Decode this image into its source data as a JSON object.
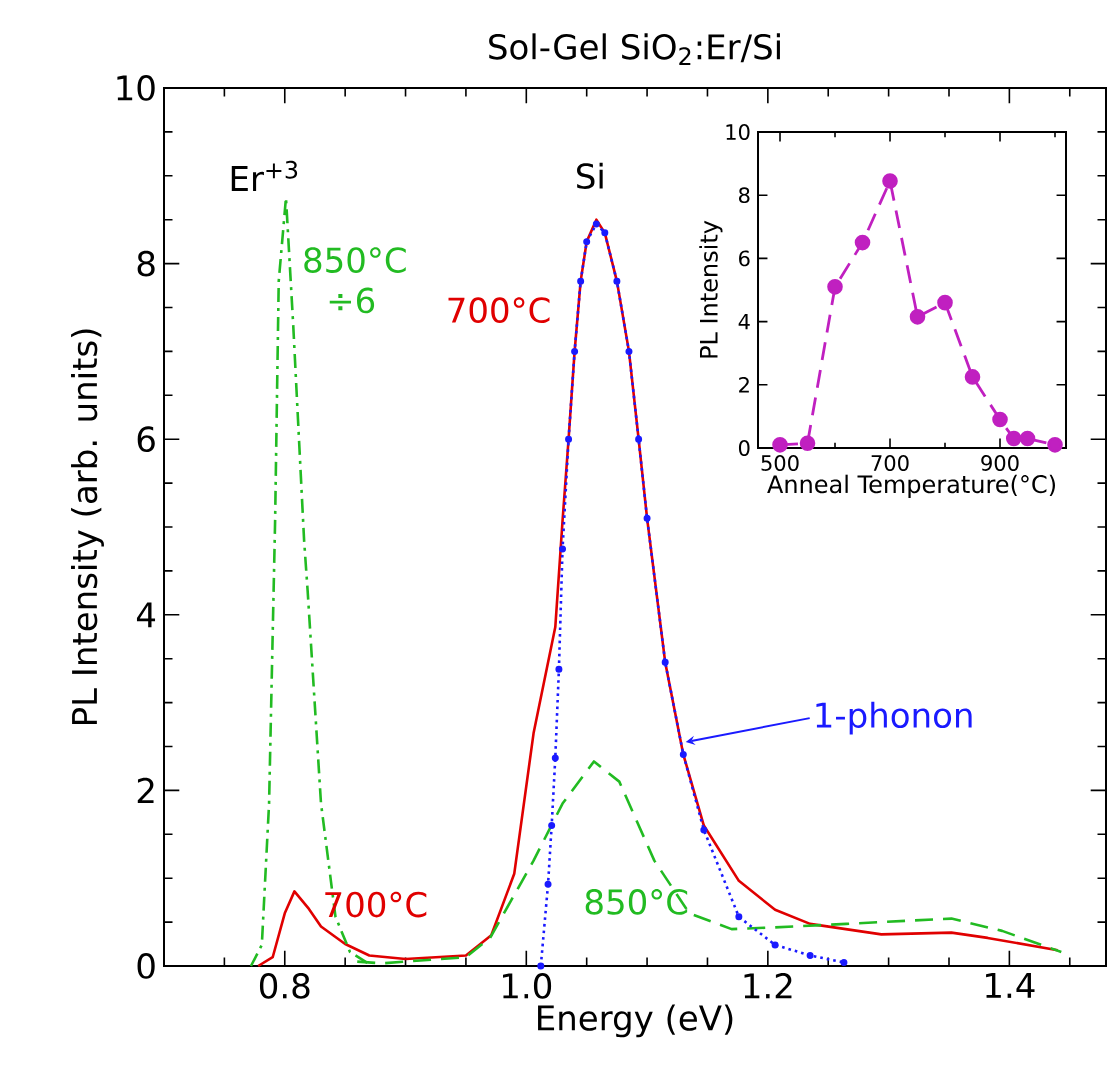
{
  "chart_data": [
    {
      "type": "line",
      "title": "Sol-Gel  SiO$_{2}$:Er/Si",
      "xlabel": "Energy (eV)",
      "ylabel": "PL Intensity (arb. units)",
      "xlim": [
        0.7,
        1.48
      ],
      "ylim": [
        0,
        10
      ],
      "xticks": [
        {
          "value": 0.75,
          "label": null
        },
        {
          "value": 0.8,
          "label": "0.8"
        },
        {
          "value": 0.85,
          "label": null
        },
        {
          "value": 0.9,
          "label": null
        },
        {
          "value": 0.95,
          "label": null
        },
        {
          "value": 1.0,
          "label": "1.0"
        },
        {
          "value": 1.05,
          "label": null
        },
        {
          "value": 1.1,
          "label": null
        },
        {
          "value": 1.15,
          "label": null
        },
        {
          "value": 1.2,
          "label": "1.2"
        },
        {
          "value": 1.25,
          "label": null
        },
        {
          "value": 1.3,
          "label": null
        },
        {
          "value": 1.35,
          "label": null
        },
        {
          "value": 1.4,
          "label": "1.4"
        },
        {
          "value": 1.45,
          "label": null
        }
      ],
      "yticks": [
        {
          "value": 0,
          "label": "0"
        },
        {
          "value": 0.5,
          "label": null
        },
        {
          "value": 1,
          "label": null
        },
        {
          "value": 1.5,
          "label": null
        },
        {
          "value": 2,
          "label": "2"
        },
        {
          "value": 2.5,
          "label": null
        },
        {
          "value": 3,
          "label": null
        },
        {
          "value": 3.5,
          "label": null
        },
        {
          "value": 4,
          "label": "4"
        },
        {
          "value": 4.5,
          "label": null
        },
        {
          "value": 5,
          "label": null
        },
        {
          "value": 5.5,
          "label": null
        },
        {
          "value": 6,
          "label": "6"
        },
        {
          "value": 6.5,
          "label": null
        },
        {
          "value": 7,
          "label": null
        },
        {
          "value": 7.5,
          "label": null
        },
        {
          "value": 8,
          "label": "8"
        },
        {
          "value": 8.5,
          "label": null
        },
        {
          "value": 9,
          "label": null
        },
        {
          "value": 9.5,
          "label": null
        },
        {
          "value": 10,
          "label": "10"
        }
      ],
      "series": [
        {
          "color": "#e00000",
          "line_style": "solid",
          "x": [
            0.778,
            0.79,
            0.8,
            0.808,
            0.82,
            0.83,
            0.85,
            0.87,
            0.9,
            0.95,
            0.971,
            0.99,
            1.006,
            1.024,
            1.03,
            1.035,
            1.04,
            1.045,
            1.05,
            1.058,
            1.065,
            1.075,
            1.085,
            1.093,
            1.1,
            1.115,
            1.13,
            1.147,
            1.176,
            1.206,
            1.235,
            1.294,
            1.352,
            1.382,
            1.44
          ],
          "values": [
            0,
            0.1,
            0.6,
            0.85,
            0.65,
            0.45,
            0.25,
            0.12,
            0.08,
            0.12,
            0.35,
            1.05,
            2.65,
            3.86,
            5.07,
            6,
            7,
            7.8,
            8.25,
            8.5,
            8.35,
            7.8,
            7,
            6,
            5.1,
            3.46,
            2.41,
            1.6,
            0.97,
            0.64,
            0.48,
            0.36,
            0.38,
            0.32,
            0.18
          ]
        },
        {
          "color": "#22bb22",
          "line_style": "dashdot",
          "x": [
            0.772,
            0.781,
            0.787,
            0.792,
            0.795,
            0.801,
            0.807,
            0.816,
            0.819,
            0.83,
            0.842,
            0.854,
            0.87
          ],
          "values": [
            0,
            0.24,
            1.85,
            5.07,
            7.8,
            8.75,
            7.3,
            4.85,
            4.26,
            1.85,
            0.56,
            0.16,
            0.02
          ]
        },
        {
          "color": "#22bb22",
          "line_style": "dashed",
          "x": [
            0.86,
            0.88,
            0.95,
            0.97,
            1.006,
            1.03,
            1.056,
            1.077,
            1.106,
            1.135,
            1.17,
            1.206,
            1.265,
            1.352,
            1.394,
            1.443
          ],
          "values": [
            0.05,
            0.03,
            0.1,
            0.32,
            1.2,
            1.85,
            2.33,
            2.1,
            1.2,
            0.6,
            0.42,
            0.44,
            0.48,
            0.54,
            0.4,
            0.16
          ]
        },
        {
          "color": "#1a1aff",
          "line_style": "dotted",
          "marker": "circle",
          "x": [
            1.012,
            1.018,
            1.021,
            1.024,
            1.027,
            1.03,
            1.035,
            1.04,
            1.045,
            1.05,
            1.058,
            1.065,
            1.075,
            1.085,
            1.093,
            1.1,
            1.115,
            1.13,
            1.147,
            1.176,
            1.206,
            1.235,
            1.263
          ],
          "values": [
            0,
            0.93,
            1.6,
            2.37,
            3.38,
            4.75,
            6,
            7,
            7.8,
            8.25,
            8.45,
            8.35,
            7.8,
            7,
            6,
            5.1,
            3.46,
            2.41,
            1.55,
            0.56,
            0.24,
            0.12,
            0.04
          ]
        }
      ],
      "annotations": [
        "Er$^{+3}$",
        "Si",
        "850°C",
        "÷6",
        "700°C",
        "700°C",
        "850°C",
        {
          "text": "1-phonon",
          "x": 1.132,
          "y": 2.55
        }
      ]
    },
    {
      "type": "line",
      "xlabel": "Anneal Temperature(°C)",
      "ylabel": "PL Intensity",
      "xlim": [
        460,
        1020
      ],
      "ylim": [
        0,
        10
      ],
      "xticks": [
        {
          "value": 500,
          "label": "500"
        },
        {
          "value": 600,
          "label": null
        },
        {
          "value": 700,
          "label": "700"
        },
        {
          "value": 800,
          "label": null
        },
        {
          "value": 900,
          "label": "900"
        },
        {
          "value": 1000,
          "label": null
        }
      ],
      "yticks": [
        0,
        2,
        4,
        6,
        8,
        10
      ],
      "marker": "circle",
      "line_style": "dashed",
      "series": [
        {
          "color": "#c020c0",
          "x": [
            500,
            550,
            600,
            650,
            700,
            750,
            800,
            850,
            900,
            925,
            950,
            1000
          ],
          "values": [
            0.1,
            0.15,
            5.1,
            6.5,
            8.45,
            4.15,
            4.6,
            2.25,
            0.9,
            0.3,
            0.3,
            0.1
          ]
        }
      ]
    }
  ]
}
